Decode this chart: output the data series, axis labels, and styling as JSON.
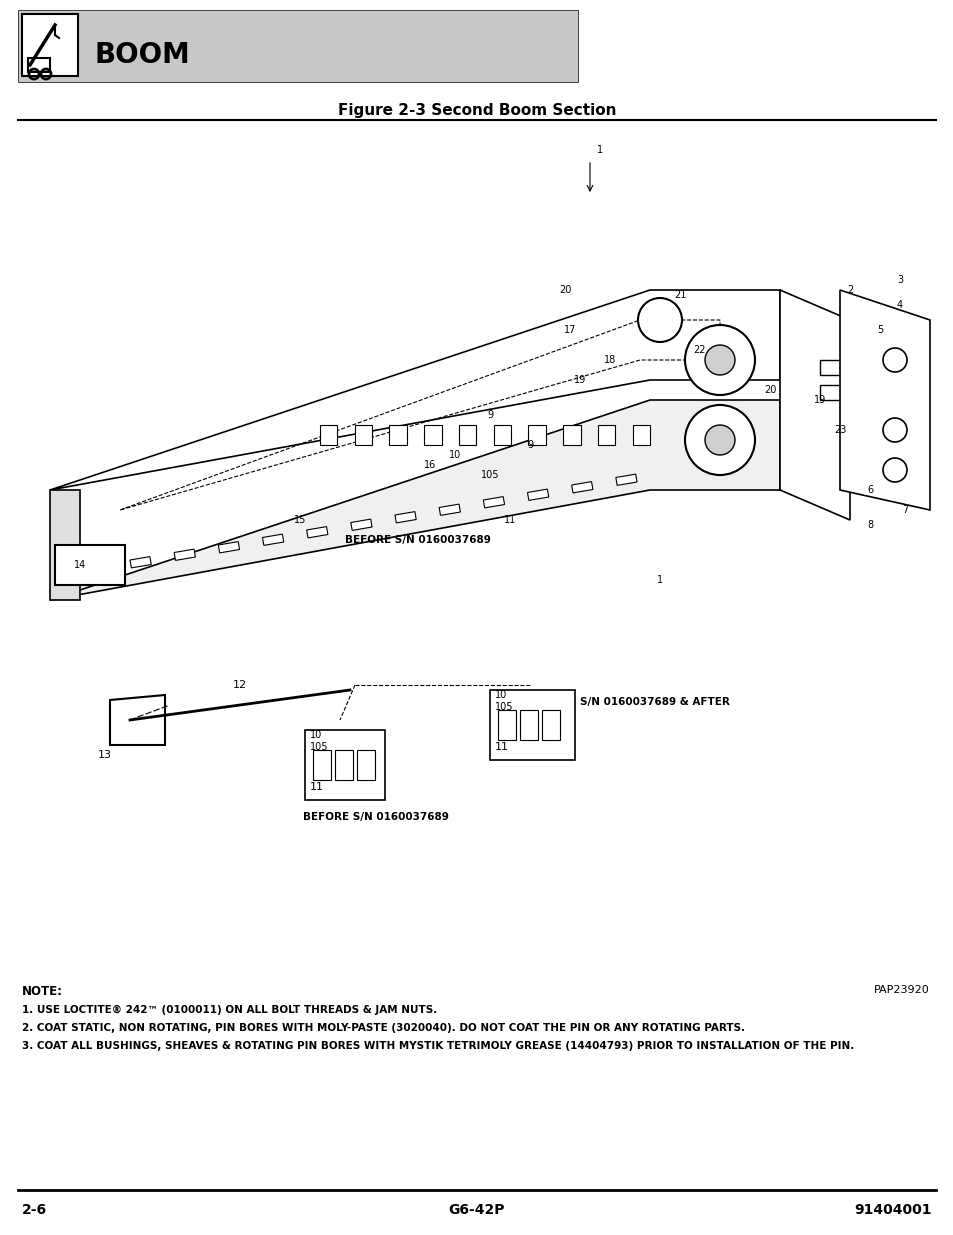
{
  "title": "BOOM",
  "figure_title": "Figure 2-3 Second Boom Section",
  "page_number_left": "2-6",
  "page_number_center": "G6-42P",
  "page_number_right": "91404001",
  "image_ref": "PAP23920",
  "header_bg_color": "#c8c8c8",
  "note_label": "NOTE:",
  "note_lines": [
    "1. USE LOCTITE® 242™ (0100011) ON ALL BOLT THREADS & JAM NUTS.",
    "2. COAT STATIC, NON ROTATING, PIN BORES WITH MOLY-PASTE (3020040). DO NOT COAT THE PIN OR ANY ROTATING PARTS.",
    "3. COAT ALL BUSHINGS, SHEAVES & ROTATING PIN BORES WITH MYSTIK TETRIMOLY GREASE (14404793) PRIOR TO INSTALLATION OF THE PIN."
  ],
  "bg_color": "#ffffff",
  "text_color": "#000000",
  "header_border_color": "#000000",
  "icon_box_color": "#ffffff"
}
